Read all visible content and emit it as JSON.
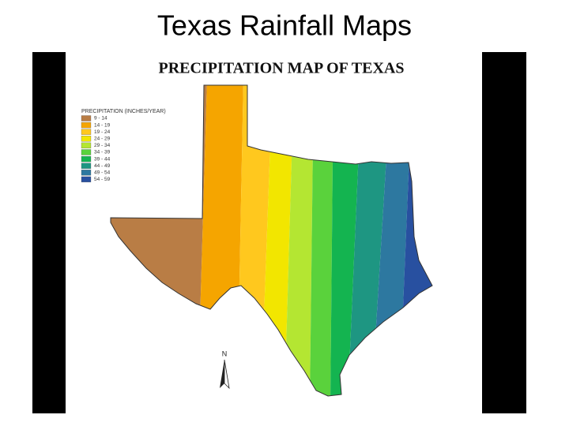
{
  "slide": {
    "title": "Texas Rainfall Maps"
  },
  "map": {
    "title": "PRECIPITATION MAP OF TEXAS",
    "legend": {
      "title": "PRECIPITATION (INCHES/YEAR)",
      "items": [
        {
          "label": "9 - 14",
          "color": "#b97d45"
        },
        {
          "label": "14 - 19",
          "color": "#f5a500"
        },
        {
          "label": "19 - 24",
          "color": "#ffc81e"
        },
        {
          "label": "24 - 29",
          "color": "#f2e600"
        },
        {
          "label": "29 - 34",
          "color": "#b4e632"
        },
        {
          "label": "34 - 39",
          "color": "#5ad23c"
        },
        {
          "label": "39 - 44",
          "color": "#14b450"
        },
        {
          "label": "44 - 49",
          "color": "#1e9682"
        },
        {
          "label": "49 - 54",
          "color": "#2d78a0"
        },
        {
          "label": "54 - 59",
          "color": "#2850a0"
        }
      ]
    },
    "north_label": "N"
  }
}
